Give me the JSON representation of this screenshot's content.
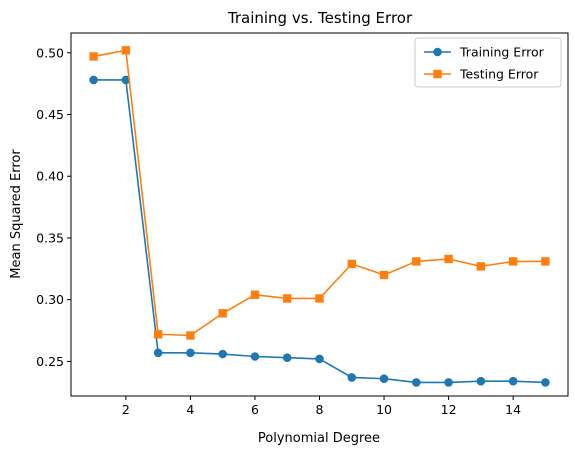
{
  "chart_data": {
    "type": "line",
    "title": "Training vs. Testing Error",
    "xlabel": "Polynomial Degree",
    "ylabel": "Mean Squared Error",
    "xlim": [
      0.3,
      15.7
    ],
    "ylim": [
      0.222,
      0.516
    ],
    "xticks": [
      2,
      4,
      6,
      8,
      10,
      12,
      14
    ],
    "yticks": [
      0.25,
      0.3,
      0.35,
      0.4,
      0.45,
      0.5
    ],
    "ytick_labels": [
      "0.25",
      "0.30",
      "0.35",
      "0.40",
      "0.45",
      "0.50"
    ],
    "grid": false,
    "legend_position": "top-right",
    "x": [
      1,
      2,
      3,
      4,
      5,
      6,
      7,
      8,
      9,
      10,
      11,
      12,
      13,
      14,
      15
    ],
    "series": [
      {
        "name": "Training Error",
        "color": "#1f77b4",
        "marker": "circle",
        "values": [
          0.478,
          0.478,
          0.257,
          0.257,
          0.256,
          0.254,
          0.253,
          0.252,
          0.237,
          0.236,
          0.233,
          0.233,
          0.234,
          0.234,
          0.233
        ]
      },
      {
        "name": "Testing Error",
        "color": "#ff7f0e",
        "marker": "square",
        "values": [
          0.497,
          0.502,
          0.272,
          0.271,
          0.289,
          0.304,
          0.301,
          0.301,
          0.329,
          0.32,
          0.331,
          0.333,
          0.327,
          0.331,
          0.331
        ]
      }
    ]
  }
}
